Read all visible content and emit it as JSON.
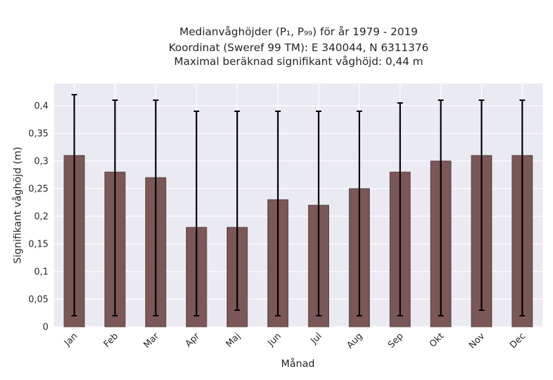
{
  "chart_data": {
    "type": "bar",
    "title_lines": [
      "Medianvåghöjder (P₁, P₉₉) för år 1979 - 2019",
      "Koordinat (Sweref 99 TM): E 340044, N 6311376",
      "Maximal beräknad signifikant våghöjd: 0,44 m"
    ],
    "xlabel": "Månad",
    "ylabel": "Signifikant våghöjd (m)",
    "categories": [
      "Jan",
      "Feb",
      "Mar",
      "Apr",
      "Maj",
      "Jun",
      "Jul",
      "Aug",
      "Sep",
      "Okt",
      "Nov",
      "Dec"
    ],
    "values": [
      0.31,
      0.28,
      0.27,
      0.18,
      0.18,
      0.23,
      0.22,
      0.25,
      0.28,
      0.3,
      0.31,
      0.31
    ],
    "error_low": [
      0.02,
      0.02,
      0.02,
      0.02,
      0.03,
      0.02,
      0.02,
      0.02,
      0.02,
      0.02,
      0.03,
      0.02
    ],
    "error_high": [
      0.42,
      0.41,
      0.41,
      0.39,
      0.39,
      0.39,
      0.39,
      0.39,
      0.405,
      0.41,
      0.41,
      0.41
    ],
    "ylim": [
      0,
      0.44
    ],
    "yticks": [
      0,
      0.05,
      0.1,
      0.15,
      0.2,
      0.25,
      0.3,
      0.35,
      0.4
    ],
    "ytick_labels": [
      "0",
      "0,05",
      "0,1",
      "0,15",
      "0,2",
      "0,25",
      "0,3",
      "0,35",
      "0,4"
    ],
    "grid": true,
    "colors": {
      "bar": "#7b5757",
      "bar_edge": "#4a3434",
      "plot_bg": "#eaeaf2",
      "grid": "#ffffff",
      "error": "#000000"
    }
  }
}
